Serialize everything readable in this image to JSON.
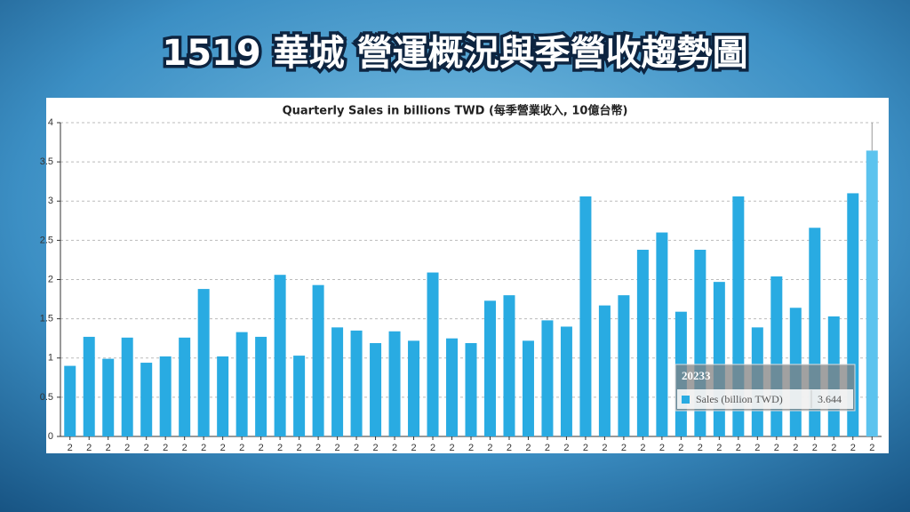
{
  "header": {
    "title": "1519 華城 營運概況與季營收趨勢圖"
  },
  "chart_data": {
    "type": "bar",
    "title": "Quarterly Sales in billions TWD (每季營業收入, 10億台幣)",
    "categories": [
      "2",
      "2",
      "2",
      "2",
      "2",
      "2",
      "2",
      "2",
      "2",
      "2",
      "2",
      "2",
      "2",
      "2",
      "2",
      "2",
      "2",
      "2",
      "2",
      "2",
      "2",
      "2",
      "2",
      "2",
      "2",
      "2",
      "2",
      "2",
      "2",
      "2",
      "2",
      "2",
      "2",
      "2",
      "2",
      "2",
      "2",
      "2",
      "2",
      "2",
      "2",
      "2",
      "2"
    ],
    "series": [
      {
        "name": "Sales (billion TWD)",
        "color": "#29abe2",
        "values": [
          0.9,
          1.27,
          0.99,
          1.26,
          0.94,
          1.02,
          1.26,
          1.88,
          1.02,
          1.33,
          1.27,
          2.06,
          1.03,
          1.93,
          1.39,
          1.35,
          1.19,
          1.34,
          1.22,
          2.09,
          1.25,
          1.19,
          1.73,
          1.8,
          1.22,
          1.48,
          1.4,
          3.06,
          1.67,
          1.8,
          2.38,
          2.6,
          1.59,
          2.38,
          1.97,
          3.06,
          1.39,
          2.04,
          1.64,
          2.66,
          1.53,
          3.1,
          3.644
        ]
      }
    ],
    "ylim": [
      0,
      4
    ],
    "yticks": [
      0,
      0.5,
      1,
      1.5,
      2,
      2.5,
      3,
      3.5,
      4
    ],
    "grid": true,
    "tooltip": {
      "title": "20233"
    }
  }
}
